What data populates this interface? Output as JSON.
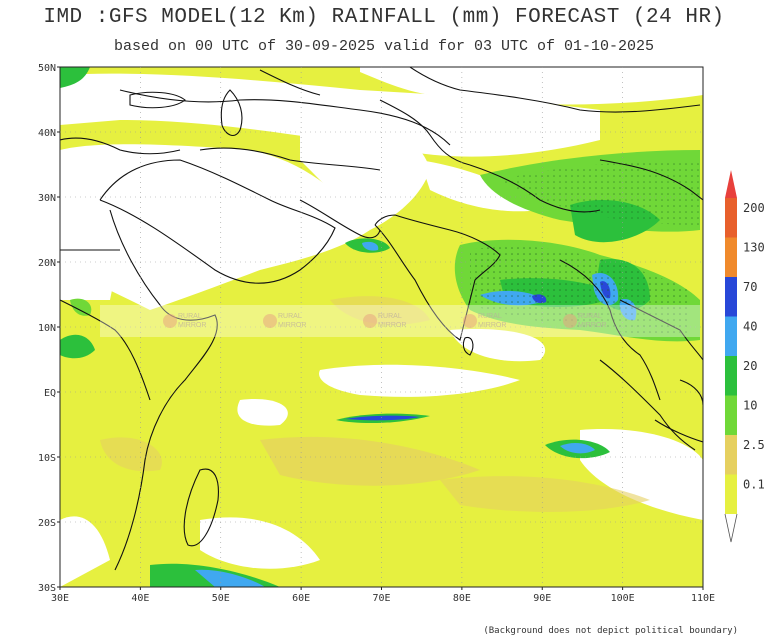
{
  "header": {
    "title": "IMD :GFS MODEL(12 Km) RAINFALL (mm) FORECAST (24 HR)",
    "subtitle": "based on 00 UTC of 30-09-2025 valid for 03 UTC of 01-10-2025"
  },
  "map": {
    "lon_ticks": [
      "30E",
      "40E",
      "50E",
      "60E",
      "70E",
      "80E",
      "90E",
      "100E",
      "110E"
    ],
    "lat_ticks": [
      "50N",
      "40N",
      "30N",
      "20N",
      "10N",
      "EQ",
      "10S",
      "20S",
      "30S"
    ],
    "lon_range": [
      30,
      110
    ],
    "lat_range": [
      -30,
      50
    ]
  },
  "legend": {
    "levels": [
      "200",
      "130",
      "70",
      "40",
      "20",
      "10",
      "2.5",
      "0.1"
    ],
    "colors": [
      "#e8602c",
      "#f08a2c",
      "#2848d8",
      "#40a8f0",
      "#2cc03c",
      "#70d838",
      "#e6d060",
      "#e6f040"
    ],
    "arrow_color": "#e8403c"
  },
  "watermark": {
    "text_top": "RURAL",
    "text_bottom": "MIRROR"
  },
  "footnote": "(Background does not depict political boundary)"
}
